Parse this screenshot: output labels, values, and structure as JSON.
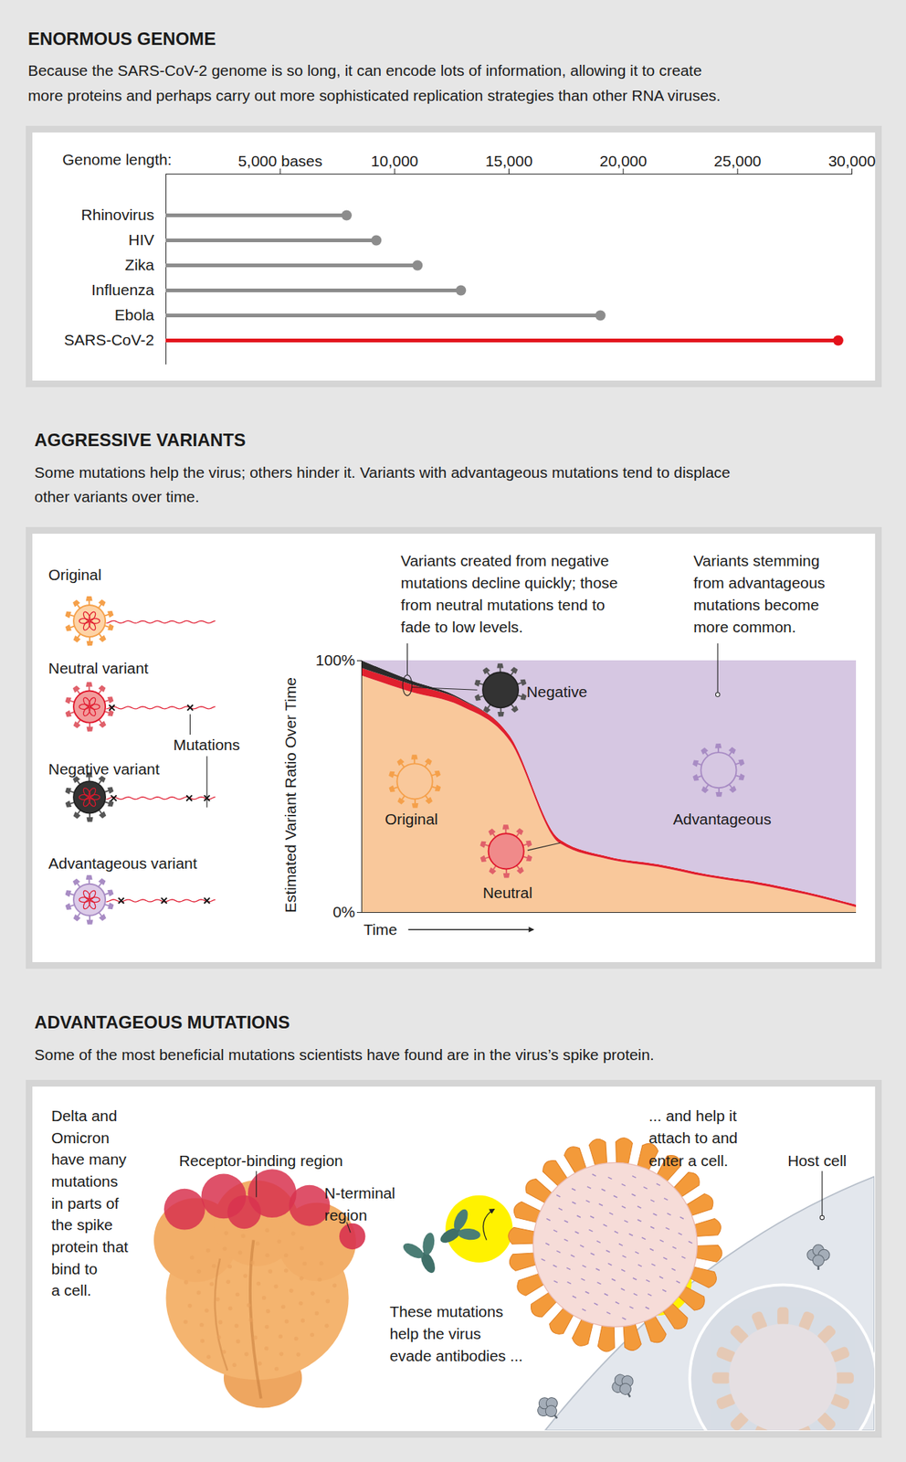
{
  "chart_data": [
    {
      "type": "lollipop",
      "title": "ENORMOUS GENOME",
      "subtitle": "Because the SARS-CoV-2 genome is so long, it can encode lots of information, allowing it to create\nmore proteins and perhaps carry out more sophisticated replication strategies than other RNA viruses.",
      "orientation": "horizontal",
      "x_label": "Genome length:",
      "categories": [
        "Rhinovirus",
        "HIV",
        "Zika",
        "Influenza",
        "Ebola",
        "SARS-CoV-2"
      ],
      "values": [
        7900,
        9200,
        11000,
        12900,
        19000,
        29400
      ],
      "colors": [
        "#8c8c8c",
        "#8c8c8c",
        "#8c8c8c",
        "#8c8c8c",
        "#8c8c8c",
        "#e3121b"
      ],
      "xlim": [
        0,
        30000
      ],
      "xticks": [
        {
          "value": 5000,
          "label": "5,000 bases"
        },
        {
          "value": 10000,
          "label": "10,000"
        },
        {
          "value": 15000,
          "label": "15,000"
        },
        {
          "value": 20000,
          "label": "20,000"
        },
        {
          "value": 25000,
          "label": "25,000"
        },
        {
          "value": 30000,
          "label": "30,000"
        }
      ],
      "grid": false
    },
    {
      "type": "area",
      "title": "AGGRESSIVE VARIANTS",
      "subtitle": "Some mutations help the virus; others hinder it. Variants with advantageous mutations tend to displace\nother variants over time.",
      "stacked": true,
      "x_label": "Time",
      "y_label": "Estimated Variant Ratio Over Time",
      "x": [
        0,
        1,
        2,
        3,
        4,
        5,
        6,
        7,
        8,
        9,
        10
      ],
      "series": [
        {
          "name": "Original",
          "color": "#f9c89b",
          "values": [
            94,
            87.5,
            82,
            68,
            27.5,
            21,
            18,
            14,
            11,
            7,
            2
          ]
        },
        {
          "name": "Neutral",
          "color": "#e0202e",
          "values": [
            3,
            3,
            2.5,
            2,
            1.5,
            1,
            1,
            1,
            1,
            1,
            1
          ]
        },
        {
          "name": "Negative",
          "color": "#2b2b2b",
          "values": [
            3,
            1.5,
            0.5,
            0,
            0,
            0,
            0,
            0,
            0,
            0,
            0
          ]
        },
        {
          "name": "Advantageous",
          "color": "#d6c7e2",
          "values": [
            0,
            8,
            15,
            30,
            71,
            78,
            81,
            85,
            88,
            92,
            97
          ]
        }
      ],
      "xlim": [
        0,
        10
      ],
      "ylim": [
        0,
        100
      ],
      "yticks": [
        {
          "value": 0,
          "label": "0%"
        },
        {
          "value": 100,
          "label": "100%"
        }
      ],
      "tick_labels": "y",
      "grid": false,
      "annotations": [
        "Variants created from negative\nmutations decline quickly; those\nfrom neutral mutations tend to\nfade to low levels.",
        "Variants stemming\nfrom advantageous\nmutations become\nmore common."
      ]
    }
  ],
  "variant_key": {
    "items": [
      "Original",
      "Neutral variant",
      "Negative variant",
      "Advantageous variant"
    ],
    "mutations_label": "Mutations"
  },
  "spike_panel": {
    "title": "ADVANTAGEOUS MUTATIONS",
    "subtitle": "Some of the most beneficial mutations scientists have found are in the virus’s spike protein.",
    "note": "Delta and\nOmicron\nhave many\nmutations\nin parts of\nthe spike\nprotein that\nbind to\na cell.",
    "receptor_label": "Receptor-binding region",
    "n_terminal_label": "N-terminal\nregion",
    "attach_label": "... and help it\nattach to and\nenter a cell.",
    "host_label": "Host cell",
    "evade_label": "These mutations\nhelp the virus\nevade antibodies ..."
  }
}
